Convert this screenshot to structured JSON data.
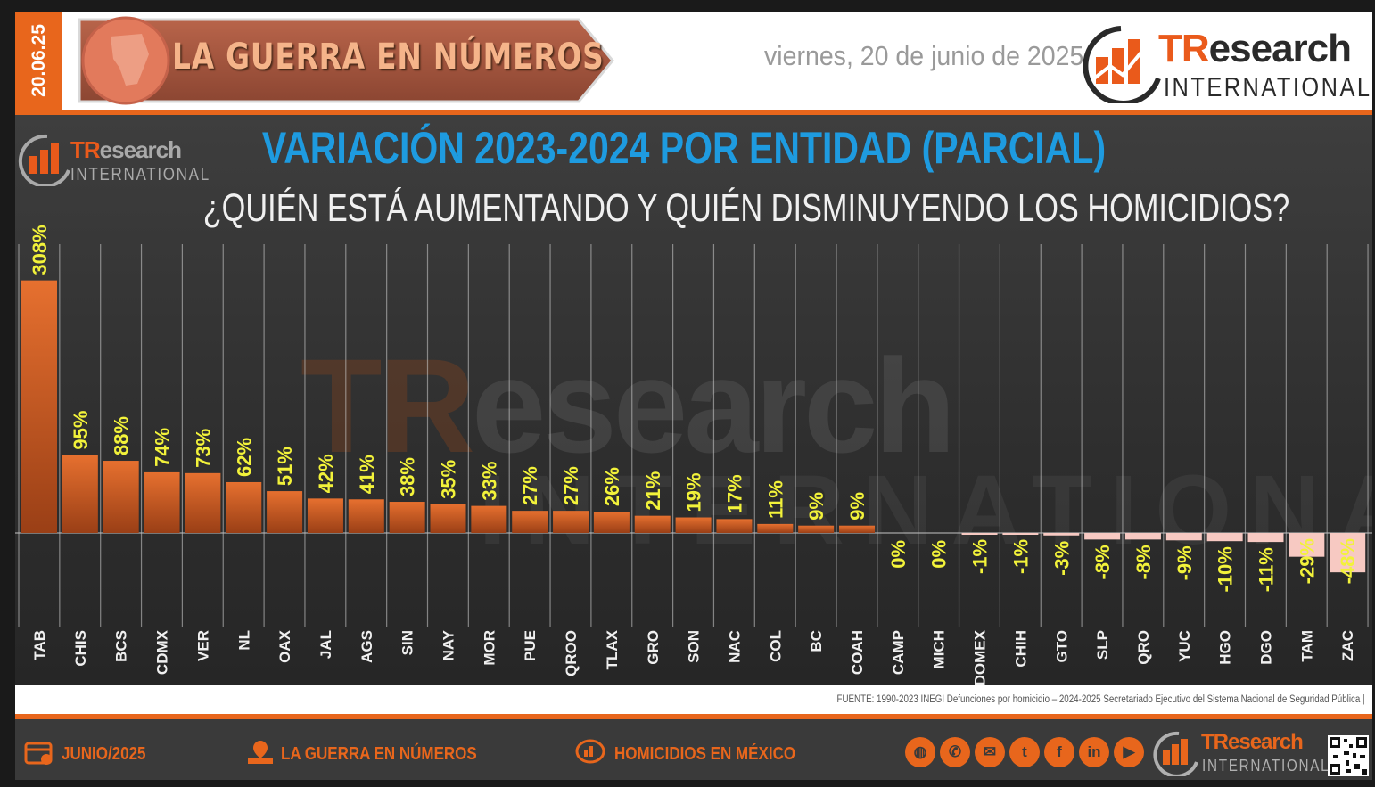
{
  "header": {
    "date_tab": "20.06.25",
    "banner_title": "LA GUERRA EN NÚMEROS",
    "date_text": "viernes, 20 de junio de 2025",
    "logo_tr": "TR",
    "logo_research": "esearch",
    "logo_international": "INTERNATIONAL"
  },
  "colors": {
    "accent": "#e8661c",
    "title_blue": "#1e9be0",
    "label_yellow": "#f2f23a",
    "bar_positive": "#d9662a",
    "bar_negative": "#f7c9c2"
  },
  "chart_data": {
    "type": "bar",
    "title": "VARIACIÓN 2023-2024 POR ENTIDAD (PARCIAL)",
    "subtitle": "¿QUIÉN ESTÁ AUMENTANDO Y QUIÉN DISMINUYENDO LOS HOMICIDIOS?",
    "categories": [
      "TAB",
      "CHIS",
      "BCS",
      "CDMX",
      "VER",
      "NL",
      "OAX",
      "JAL",
      "AGS",
      "SIN",
      "NAY",
      "MOR",
      "PUE",
      "QROO",
      "TLAX",
      "GRO",
      "SON",
      "NAC",
      "COL",
      "BC",
      "COAH",
      "CAMP",
      "MICH",
      "EDOMEX",
      "CHIH",
      "GTO",
      "SLP",
      "QRO",
      "YUC",
      "HGO",
      "DGO",
      "TAM",
      "ZAC"
    ],
    "values": [
      308,
      95,
      88,
      74,
      73,
      62,
      51,
      42,
      41,
      38,
      35,
      33,
      27,
      27,
      26,
      21,
      19,
      17,
      11,
      9,
      9,
      0,
      0,
      -1,
      -1,
      -3,
      -8,
      -8,
      -9,
      -10,
      -11,
      -29,
      -48
    ],
    "labels": [
      "308%",
      "95%",
      "88%",
      "74%",
      "73%",
      "62%",
      "51%",
      "42%",
      "41%",
      "38%",
      "35%",
      "33%",
      "27%",
      "27%",
      "26%",
      "21%",
      "19%",
      "17%",
      "11%",
      "9%",
      "9%",
      "0%",
      "0%",
      "-1%",
      "-1%",
      "-3%",
      "-8%",
      "-8%",
      "-9%",
      "-10%",
      "-11%",
      "-29%",
      "-48%"
    ],
    "xlabel": "",
    "ylabel": "",
    "grid": true
  },
  "source": "FUENTE: 1990-2023 INEGI Defunciones por homicidio – 2024-2025 Secretariado Ejecutivo del Sistema Nacional de Seguridad Pública |",
  "footer": {
    "date": "JUNIO/2025",
    "section": "LA GUERRA EN NÚMEROS",
    "topic": "HOMICIDIOS EN MÉXICO",
    "social_icons": [
      "globe-icon",
      "phone-icon",
      "email-icon",
      "twitter-icon",
      "facebook-icon",
      "linkedin-icon",
      "youtube-icon"
    ],
    "logo_tr": "TResearch",
    "logo_international": "INTERNATIONAL"
  }
}
